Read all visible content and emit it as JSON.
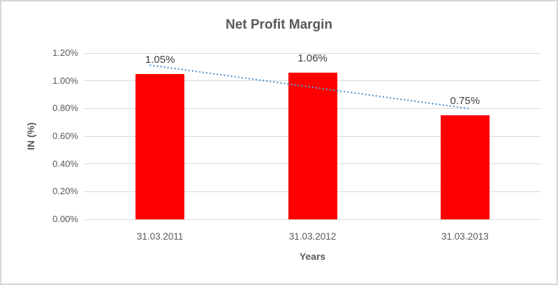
{
  "frame": {
    "background": "#FFFFFF",
    "border_color": "#D6D6D6"
  },
  "chart_data": {
    "type": "bar",
    "title": "Net Profit Margin",
    "xlabel": "Years",
    "ylabel": "IN (%)",
    "categories": [
      "31.03.2011",
      "31.03.2012",
      "31.03.2013"
    ],
    "values": [
      1.05,
      1.06,
      0.75
    ],
    "data_labels": [
      "1.05%",
      "1.06%",
      "0.75%"
    ],
    "ylim": [
      0,
      1.2
    ],
    "ytick_step": 0.2,
    "ytick_labels": [
      "0.00%",
      "0.20%",
      "0.40%",
      "0.60%",
      "0.80%",
      "1.00%",
      "1.20%"
    ],
    "grid": true,
    "legend": "none",
    "bar_color": "#FF0000",
    "gridline_color": "#D9D9D9",
    "axis_text_color": "#595959",
    "data_label_color": "#404040",
    "trendline": {
      "type": "linear",
      "style": "dotted",
      "color": "#5B9BD5",
      "fit_values": [
        1.1033,
        0.9533,
        0.8033
      ]
    }
  }
}
